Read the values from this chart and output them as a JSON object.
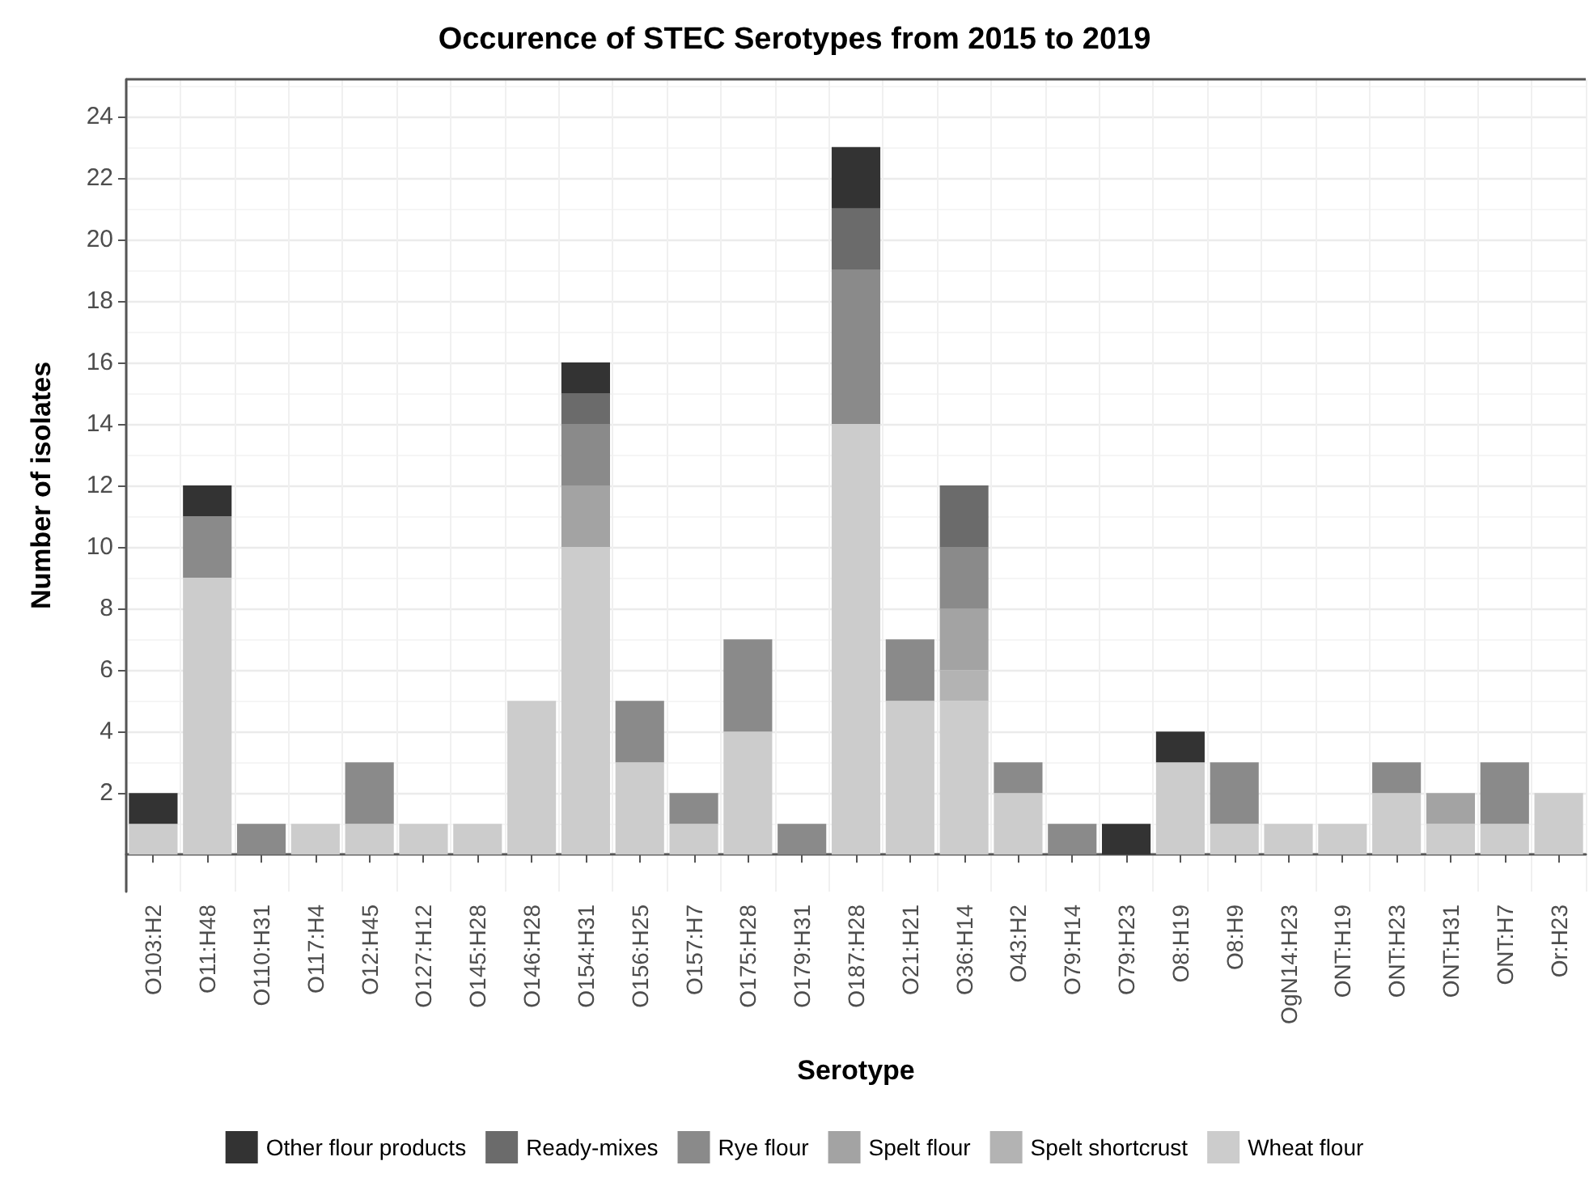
{
  "chart_data": {
    "type": "bar",
    "title": "Occurence of STEC Serotypes from 2015 to 2019",
    "xlabel": "Serotype",
    "ylabel": "Number of isolates",
    "categories": [
      "O103:H2",
      "O11:H48",
      "O110:H31",
      "O117:H4",
      "O12:H45",
      "O127:H12",
      "O145:H28",
      "O146:H28",
      "O154:H31",
      "O156:H25",
      "O157:H7",
      "O175:H28",
      "O179:H31",
      "O187:H28",
      "O21:H21",
      "O36:H14",
      "O43:H2",
      "O79:H14",
      "O79:H23",
      "O8:H19",
      "O8:H9",
      "OgN14:H23",
      "ONT:H19",
      "ONT:H23",
      "ONT:H31",
      "ONT:H7",
      "Or:H23"
    ],
    "stacked": true,
    "series": [
      {
        "name": "Wheat flour",
        "color": "#cccccc",
        "values": [
          1,
          9,
          null,
          1,
          1,
          1,
          1,
          5,
          10,
          3,
          1,
          4,
          null,
          14,
          5,
          5,
          2,
          null,
          null,
          3,
          1,
          1,
          1,
          2,
          1,
          1,
          2
        ]
      },
      {
        "name": "Spelt shortcrust",
        "color": "#b3b3b3",
        "values": [
          null,
          null,
          null,
          null,
          null,
          null,
          null,
          null,
          null,
          null,
          null,
          null,
          null,
          null,
          null,
          1,
          null,
          null,
          null,
          null,
          null,
          null,
          null,
          null,
          null,
          null,
          null
        ]
      },
      {
        "name": "Spelt flour",
        "color": "#a3a3a3",
        "values": [
          null,
          null,
          null,
          null,
          null,
          null,
          null,
          null,
          2,
          null,
          null,
          null,
          null,
          null,
          null,
          2,
          null,
          null,
          null,
          null,
          null,
          null,
          null,
          null,
          1,
          null,
          null
        ]
      },
      {
        "name": "Rye flour",
        "color": "#8a8a8a",
        "values": [
          null,
          2,
          1,
          null,
          2,
          null,
          null,
          null,
          2,
          2,
          1,
          3,
          1,
          5,
          2,
          2,
          1,
          1,
          null,
          null,
          2,
          null,
          null,
          1,
          null,
          2,
          null
        ]
      },
      {
        "name": "Ready-mixes",
        "color": "#6b6b6b",
        "values": [
          null,
          null,
          null,
          null,
          null,
          null,
          null,
          null,
          1,
          null,
          null,
          null,
          null,
          2,
          null,
          2,
          null,
          null,
          null,
          null,
          null,
          null,
          null,
          null,
          null,
          null,
          null
        ]
      },
      {
        "name": "Other flour products",
        "color": "#333333",
        "values": [
          1,
          1,
          null,
          null,
          null,
          null,
          null,
          null,
          1,
          null,
          null,
          null,
          null,
          2,
          null,
          null,
          null,
          null,
          1,
          1,
          null,
          null,
          null,
          null,
          null,
          null,
          null
        ]
      }
    ],
    "ylim": [
      -1.2,
      25.2
    ],
    "yticks": [
      2,
      4,
      6,
      8,
      10,
      12,
      14,
      16,
      18,
      20,
      22,
      24
    ],
    "grid": true,
    "legend": "bottom"
  }
}
